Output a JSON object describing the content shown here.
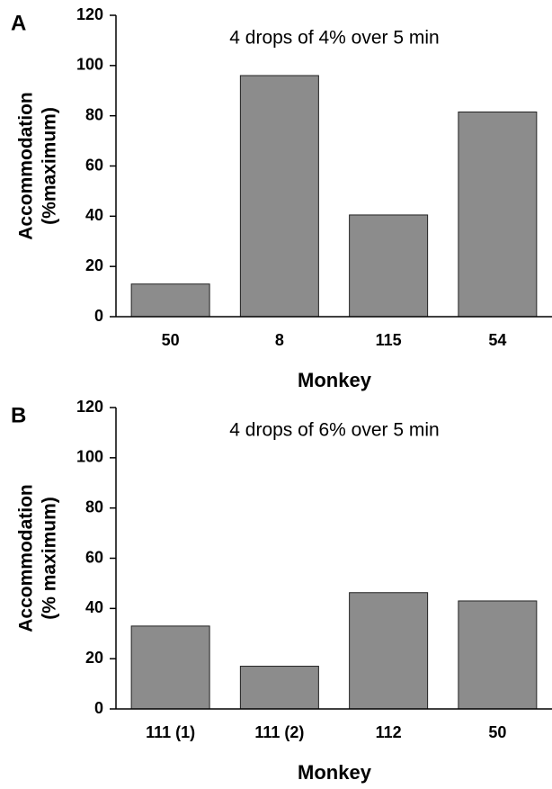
{
  "chart_data": [
    {
      "type": "bar",
      "label": "A",
      "annotation": "4 drops of 4% over 5 min",
      "ylabel": [
        "Accommodation",
        "(%maximum)"
      ],
      "xlabel": "Monkey",
      "categories": [
        "50",
        "8",
        "115",
        "54"
      ],
      "values": [
        13,
        96,
        40.5,
        81.5
      ],
      "color": "#8c8c8c",
      "ylim": [
        0,
        120
      ],
      "yticks": [
        0,
        20,
        40,
        60,
        80,
        100,
        120
      ]
    },
    {
      "type": "bar",
      "label": "B",
      "annotation": "4 drops of 6% over 5 min",
      "ylabel": [
        "Accommodation",
        "(% maximum)"
      ],
      "xlabel": "Monkey",
      "categories": [
        "111 (1)",
        "111 (2)",
        "112",
        "50"
      ],
      "values": [
        33,
        17,
        46.3,
        43
      ],
      "color": "#8c8c8c",
      "ylim": [
        0,
        120
      ],
      "yticks": [
        0,
        20,
        40,
        60,
        80,
        100,
        120
      ]
    }
  ]
}
